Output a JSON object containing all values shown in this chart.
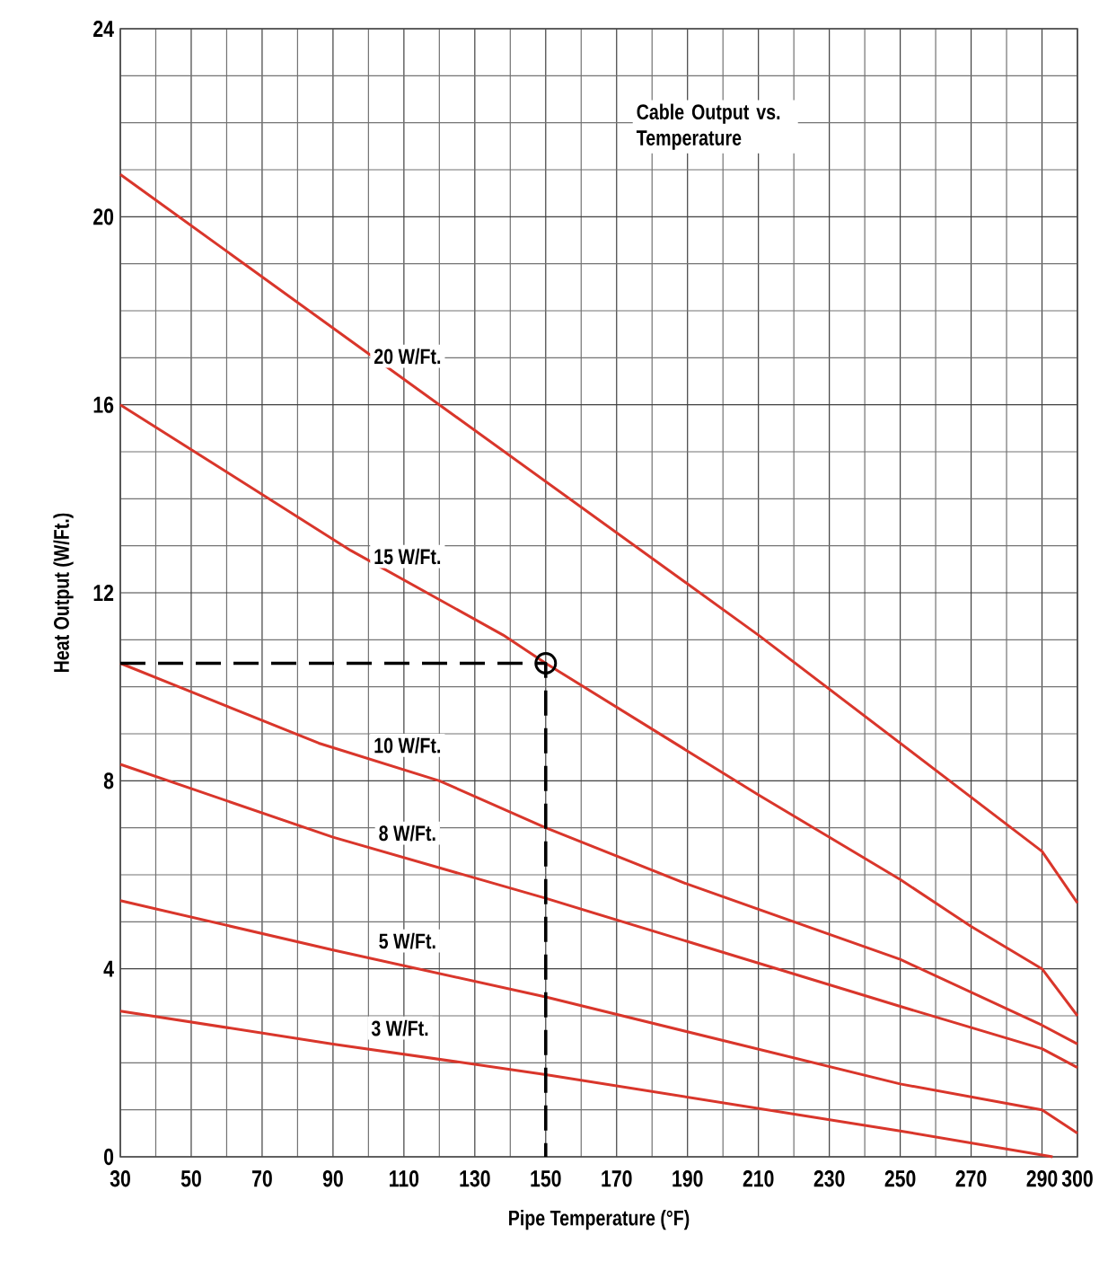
{
  "chart_data": {
    "type": "line",
    "title": "Cable Output vs. Temperature",
    "xlabel": "Pipe Temperature (°F)",
    "ylabel": "Heat Output (W/Ft.)",
    "xlim": [
      30,
      300
    ],
    "ylim": [
      0,
      24
    ],
    "xticks": [
      30,
      50,
      70,
      90,
      110,
      130,
      150,
      170,
      190,
      210,
      230,
      250,
      270,
      290,
      300
    ],
    "yticks": [
      0,
      4,
      8,
      12,
      16,
      20,
      24
    ],
    "grid": true,
    "series": [
      {
        "name": "20 W/Ft.",
        "color": "#d9362b",
        "x": [
          30,
          120,
          210,
          250,
          290,
          300
        ],
        "values": [
          20.9,
          16.0,
          11.1,
          8.8,
          6.5,
          5.4
        ]
      },
      {
        "name": "15 W/Ft.",
        "color": "#d9362b",
        "x": [
          30,
          95,
          138,
          150,
          210,
          250,
          270,
          290,
          300
        ],
        "values": [
          16.0,
          12.9,
          11.1,
          10.5,
          7.7,
          5.9,
          4.9,
          4.0,
          3.0
        ]
      },
      {
        "name": "10 W/Ft.",
        "color": "#d9362b",
        "x": [
          30,
          86,
          120,
          150,
          190,
          250,
          290,
          300
        ],
        "values": [
          10.5,
          8.8,
          8.0,
          7.0,
          5.8,
          4.2,
          2.8,
          2.4
        ]
      },
      {
        "name": "8 W/Ft.",
        "color": "#d9362b",
        "x": [
          30,
          90,
          150,
          250,
          290,
          300
        ],
        "values": [
          8.35,
          6.8,
          5.5,
          3.2,
          2.3,
          1.9
        ]
      },
      {
        "name": "5 W/Ft.",
        "color": "#d9362b",
        "x": [
          30,
          90,
          150,
          250,
          290,
          300
        ],
        "values": [
          5.45,
          4.4,
          3.4,
          1.55,
          1.0,
          0.5
        ]
      },
      {
        "name": "3 W/Ft.",
        "color": "#d9362b",
        "x": [
          30,
          90,
          150,
          250,
          293
        ],
        "values": [
          3.1,
          2.4,
          1.75,
          0.55,
          0
        ]
      },
      {
        "type": "line",
        "color": "#000000",
        "line_style": "dashed",
        "x": [
          30,
          150,
          150
        ],
        "values": [
          10.5,
          10.5,
          0
        ]
      },
      {
        "type": "scatter",
        "color": "#000000",
        "marker": "circle",
        "x": [
          150
        ],
        "values": [
          10.5
        ]
      }
    ]
  }
}
